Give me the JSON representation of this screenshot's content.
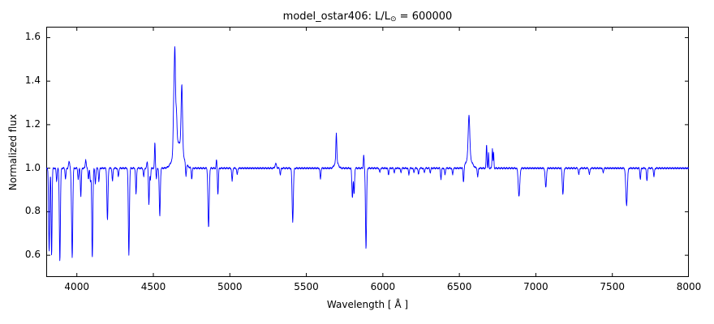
{
  "chart_data": {
    "type": "line",
    "title": "model_ostar406: L/L⊙ = 600000",
    "title_parts": {
      "pre": "model_ostar406: L/L",
      "sub": "⊙",
      "post": " = 600000"
    },
    "xlabel": "Wavelength [ Å ]",
    "ylabel": "Normalized flux",
    "xlim": [
      3800,
      8000
    ],
    "ylim": [
      0.5,
      1.65
    ],
    "xticks": [
      4000,
      4500,
      5000,
      5500,
      6000,
      6500,
      7000,
      7500,
      8000
    ],
    "yticks": [
      0.6,
      0.8,
      1.0,
      1.2,
      1.4,
      1.6
    ],
    "line_color": "#0000ff",
    "frame_color": "#000000",
    "continuum": 1.0,
    "sample_step": 1.5,
    "noise_amplitude": 0.0025,
    "features_format": [
      "center_angstrom",
      "amplitude",
      "sigma_angstrom"
    ],
    "features": [
      [
        3819,
        -0.38,
        3.5
      ],
      [
        3835,
        -0.4,
        3
      ],
      [
        3868,
        -0.06,
        3
      ],
      [
        3889,
        -0.425,
        3.5
      ],
      [
        3926,
        -0.05,
        3
      ],
      [
        3950,
        0.03,
        4
      ],
      [
        3964,
        -0.07,
        3
      ],
      [
        3970,
        -0.4,
        3.5
      ],
      [
        4009,
        -0.05,
        3
      ],
      [
        4026,
        -0.13,
        3
      ],
      [
        4058,
        0.04,
        3
      ],
      [
        4076,
        -0.05,
        3
      ],
      [
        4089,
        -0.06,
        3
      ],
      [
        4101,
        -0.415,
        3.5
      ],
      [
        4121,
        -0.07,
        3
      ],
      [
        4144,
        -0.06,
        3
      ],
      [
        4200,
        -0.24,
        3.5
      ],
      [
        4233,
        -0.06,
        3
      ],
      [
        4271,
        -0.04,
        3
      ],
      [
        4340,
        -0.4,
        3.5
      ],
      [
        4387,
        -0.12,
        3
      ],
      [
        4437,
        -0.04,
        3
      ],
      [
        4460,
        0.03,
        3
      ],
      [
        4471,
        -0.17,
        3
      ],
      [
        4481,
        -0.05,
        2.5
      ],
      [
        4510,
        0.12,
        2.5
      ],
      [
        4520,
        -0.05,
        2.5
      ],
      [
        4542,
        -0.22,
        3.5
      ],
      [
        4634,
        0.25,
        4
      ],
      [
        4641,
        0.4,
        3.5
      ],
      [
        4650,
        0.16,
        4
      ],
      [
        4663,
        0.12,
        28
      ],
      [
        4686,
        0.3,
        4.5
      ],
      [
        4713,
        -0.06,
        3
      ],
      [
        4751,
        -0.05,
        3
      ],
      [
        4861,
        -0.275,
        4
      ],
      [
        4913,
        0.04,
        2.5
      ],
      [
        4922,
        -0.12,
        3
      ],
      [
        5015,
        -0.06,
        3
      ],
      [
        5048,
        -0.03,
        3
      ],
      [
        5300,
        0.02,
        5
      ],
      [
        5330,
        -0.03,
        3
      ],
      [
        5411,
        -0.245,
        4
      ],
      [
        5592,
        -0.05,
        3
      ],
      [
        5696,
        0.13,
        3
      ],
      [
        5696,
        0.03,
        12
      ],
      [
        5801,
        -0.135,
        3.5
      ],
      [
        5812,
        -0.12,
        3
      ],
      [
        5875,
        0.06,
        2.5
      ],
      [
        5890,
        -0.37,
        3.5
      ],
      [
        5980,
        -0.02,
        3
      ],
      [
        6037,
        -0.03,
        3
      ],
      [
        6075,
        -0.02,
        3
      ],
      [
        6118,
        -0.02,
        3
      ],
      [
        6170,
        -0.03,
        3
      ],
      [
        6203,
        -0.02,
        3
      ],
      [
        6233,
        -0.03,
        3
      ],
      [
        6271,
        -0.02,
        3
      ],
      [
        6310,
        -0.02,
        3
      ],
      [
        6380,
        -0.05,
        3
      ],
      [
        6406,
        -0.03,
        3
      ],
      [
        6456,
        -0.03,
        3
      ],
      [
        6527,
        -0.07,
        3
      ],
      [
        6563,
        0.195,
        5
      ],
      [
        6563,
        0.05,
        18
      ],
      [
        6620,
        -0.04,
        3
      ],
      [
        6678,
        0.11,
        2.5
      ],
      [
        6691,
        0.07,
        2
      ],
      [
        6716,
        0.09,
        2.5
      ],
      [
        6724,
        0.07,
        2
      ],
      [
        6890,
        -0.13,
        5
      ],
      [
        7065,
        -0.09,
        4
      ],
      [
        7177,
        -0.12,
        4
      ],
      [
        7281,
        -0.03,
        3
      ],
      [
        7350,
        -0.03,
        3
      ],
      [
        7440,
        -0.02,
        3
      ],
      [
        7593,
        -0.17,
        5
      ],
      [
        7683,
        -0.05,
        3
      ],
      [
        7726,
        -0.06,
        3
      ],
      [
        7772,
        -0.04,
        3
      ]
    ]
  }
}
